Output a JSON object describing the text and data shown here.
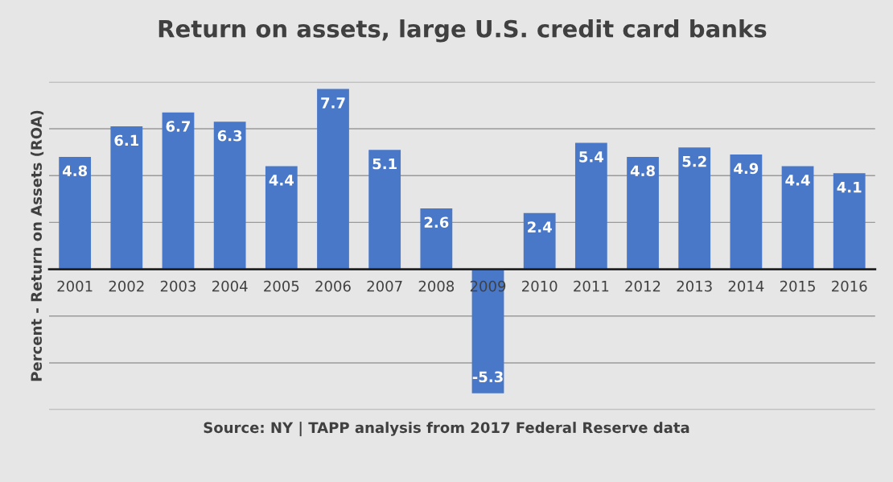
{
  "chart_data": {
    "type": "bar",
    "title": "Return on assets, large U.S. credit card banks",
    "ylabel": "Percent - Return on Assets (ROA)",
    "categories": [
      "2001",
      "2002",
      "2003",
      "2004",
      "2005",
      "2006",
      "2007",
      "2008",
      "2009",
      "2010",
      "2011",
      "2012",
      "2013",
      "2014",
      "2015",
      "2016"
    ],
    "values": [
      4.8,
      6.1,
      6.7,
      6.3,
      4.4,
      7.7,
      5.1,
      2.6,
      -5.3,
      2.4,
      5.4,
      4.8,
      5.2,
      4.9,
      4.4,
      4.1
    ],
    "color": "#4a78c8",
    "data_labels": true,
    "ylim": [
      -6,
      8
    ],
    "yticks": [
      {
        "value": -6,
        "label": null
      },
      {
        "value": -4,
        "label": null
      },
      {
        "value": -2,
        "label": null
      },
      {
        "value": 0,
        "label": null
      },
      {
        "value": 2,
        "label": null
      },
      {
        "value": 4,
        "label": null
      },
      {
        "value": 6,
        "label": null
      },
      {
        "value": 8,
        "label": null
      }
    ],
    "tick_labels": "x",
    "grid": "y",
    "legend": false,
    "annotations": [
      "Source: NY | TAPP analysis from 2017 Federal Reserve data"
    ]
  }
}
